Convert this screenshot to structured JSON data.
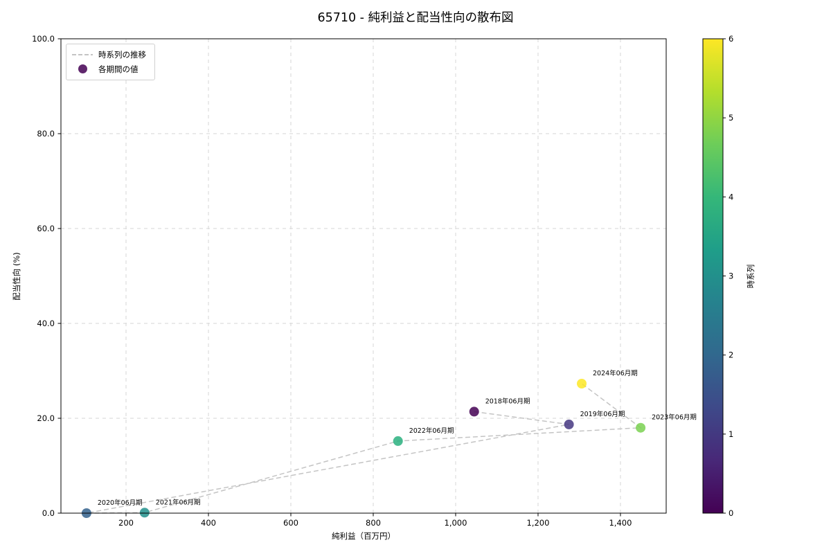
{
  "chart_data": {
    "type": "scatter",
    "title": "65710 - 純利益と配当性向の散布図",
    "xlabel": "純利益（百万円）",
    "ylabel": "配当性向 (%)",
    "xlim": [
      42,
      1511
    ],
    "ylim": [
      0,
      100
    ],
    "x_ticks": [
      200,
      400,
      600,
      800,
      1000,
      1200,
      1400
    ],
    "x_tick_labels": [
      "200",
      "400",
      "600",
      "800",
      "1,000",
      "1,200",
      "1,400"
    ],
    "y_ticks": [
      0,
      20,
      40,
      60,
      80,
      100
    ],
    "y_tick_labels": [
      "0.0",
      "20.0",
      "40.0",
      "60.0",
      "80.0",
      "100.0"
    ],
    "grid": true,
    "grid_style": "dashed",
    "legend": {
      "position": "upper left",
      "items": [
        {
          "label": "時系列の推移",
          "marker": "dashed-line",
          "color": "#b0b0b0"
        },
        {
          "label": "各期間の値",
          "marker": "circle",
          "color": "#440154"
        }
      ]
    },
    "points": [
      {
        "label": "2018年06月期",
        "x": 1045,
        "y": 21.4,
        "t": 0,
        "color": "#440154"
      },
      {
        "label": "2019年06月期",
        "x": 1275,
        "y": 18.7,
        "t": 1,
        "color": "#453781"
      },
      {
        "label": "2020年06月期",
        "x": 104,
        "y": 0.0,
        "t": 2,
        "color": "#34618d"
      },
      {
        "label": "2021年06月期",
        "x": 245,
        "y": 0.1,
        "t": 3,
        "color": "#21918c"
      },
      {
        "label": "2022年06月期",
        "x": 860,
        "y": 15.2,
        "t": 4,
        "color": "#2ab07f"
      },
      {
        "label": "2023年06月期",
        "x": 1449,
        "y": 18.0,
        "t": 5,
        "color": "#7ad151"
      },
      {
        "label": "2024年06月期",
        "x": 1306,
        "y": 27.3,
        "t": 6,
        "color": "#fde725"
      }
    ],
    "line_connect_order": [
      "2018年06月期",
      "2019年06月期",
      "2020年06月期",
      "2021年06月期",
      "2022年06月期",
      "2023年06月期",
      "2024年06月期"
    ],
    "colorbar": {
      "label": "時系列",
      "min": 0,
      "max": 6,
      "ticks": [
        "0",
        "1",
        "2",
        "3",
        "4",
        "5",
        "6"
      ],
      "gradient": [
        "#440154",
        "#482878",
        "#3e4989",
        "#31688e",
        "#26828e",
        "#1f9e89",
        "#35b779",
        "#6dcd59",
        "#b4de2c",
        "#fde725"
      ]
    }
  }
}
